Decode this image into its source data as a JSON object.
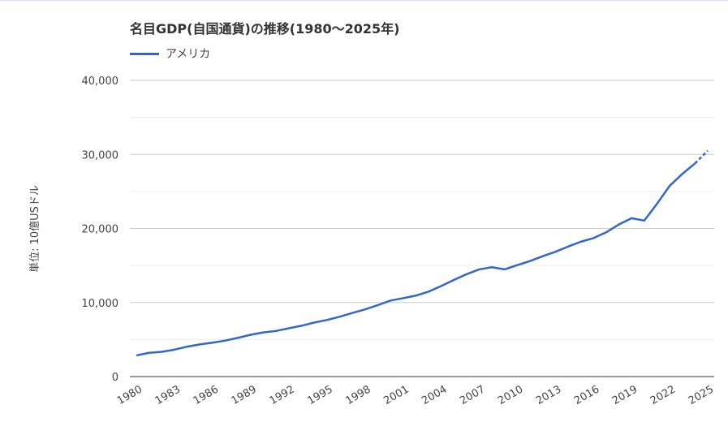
{
  "chart_data": {
    "type": "line",
    "title": "名目GDP(自国通貨)の推移(1980～2025年)",
    "ylabel": "単位: 10億USドル",
    "xlabel": "",
    "ylim": [
      0,
      40000
    ],
    "yticks": [
      "0",
      "10,000",
      "20,000",
      "30,000",
      "40,000"
    ],
    "xticks": [
      "1980",
      "1983",
      "1986",
      "1989",
      "1992",
      "1995",
      "1998",
      "2001",
      "2004",
      "2007",
      "2010",
      "2013",
      "2016",
      "2019",
      "2022",
      "2025"
    ],
    "legend_position": "top-left",
    "grid": true,
    "x": [
      1980,
      1981,
      1982,
      1983,
      1984,
      1985,
      1986,
      1987,
      1988,
      1989,
      1990,
      1991,
      1992,
      1993,
      1994,
      1995,
      1996,
      1997,
      1998,
      1999,
      2000,
      2001,
      2002,
      2003,
      2004,
      2005,
      2006,
      2007,
      2008,
      2009,
      2010,
      2011,
      2012,
      2013,
      2014,
      2015,
      2016,
      2017,
      2018,
      2019,
      2020,
      2021,
      2022,
      2023,
      2024,
      2025
    ],
    "series": [
      {
        "name": "アメリカ",
        "color": "#3366cc",
        "estimate_from": 2024,
        "values": [
          2857,
          3207,
          3343,
          3634,
          4037,
          4339,
          4580,
          4855,
          5236,
          5642,
          5963,
          6158,
          6520,
          6859,
          7287,
          7639,
          8073,
          8578,
          9063,
          9631,
          10251,
          10582,
          10929,
          11457,
          12217,
          13039,
          13816,
          14474,
          14770,
          14478,
          15049,
          15600,
          16254,
          16843,
          17551,
          18206,
          18695,
          19477,
          20533,
          21381,
          21060,
          23315,
          25744,
          27361,
          28781,
          30507
        ]
      }
    ]
  }
}
